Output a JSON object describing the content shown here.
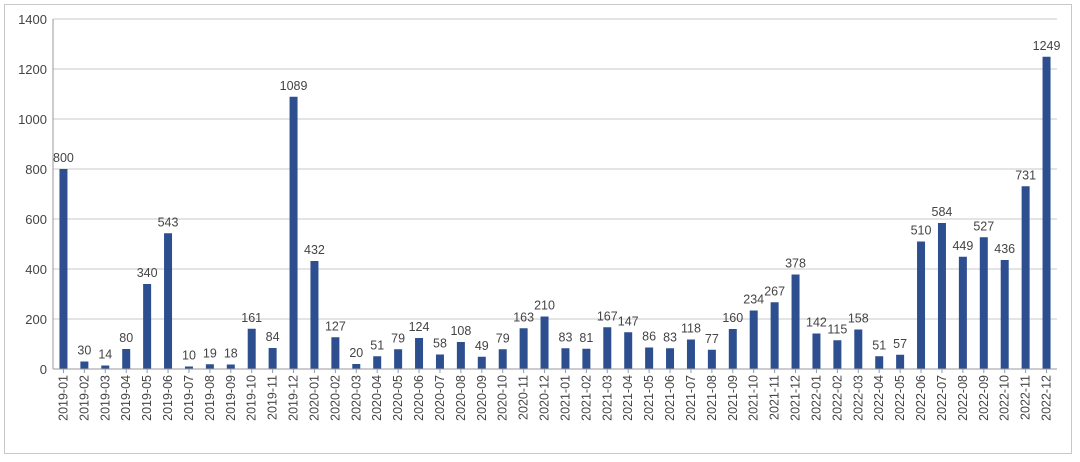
{
  "chart_data": {
    "type": "bar",
    "title": "",
    "xlabel": "",
    "ylabel": "",
    "ylim": [
      0,
      1400
    ],
    "yticks": [
      0,
      200,
      400,
      600,
      800,
      1000,
      1200,
      1400
    ],
    "grid": true,
    "legend": "none",
    "bar_color": "#2e4f8f",
    "categories": [
      "2019-01",
      "2019-02",
      "2019-03",
      "2019-04",
      "2019-05",
      "2019-06",
      "2019-07",
      "2019-08",
      "2019-09",
      "2019-10",
      "2019-11",
      "2019-12",
      "2020-01",
      "2020-02",
      "2020-03",
      "2020-04",
      "2020-05",
      "2020-06",
      "2020-07",
      "2020-08",
      "2020-09",
      "2020-10",
      "2020-11",
      "2020-12",
      "2021-01",
      "2021-02",
      "2021-03",
      "2021-04",
      "2021-05",
      "2021-06",
      "2021-07",
      "2021-08",
      "2021-09",
      "2021-10",
      "2021-11",
      "2021-12",
      "2022-01",
      "2022-02",
      "2022-03",
      "2022-04",
      "2022-05",
      "2022-06",
      "2022-07",
      "2022-08",
      "2022-09",
      "2022-10",
      "2022-11",
      "2022-12"
    ],
    "values": [
      800,
      30,
      14,
      80,
      340,
      543,
      10,
      19,
      18,
      161,
      84,
      1089,
      432,
      127,
      20,
      51,
      79,
      124,
      58,
      108,
      49,
      79,
      163,
      210,
      83,
      81,
      167,
      147,
      86,
      83,
      118,
      77,
      160,
      234,
      267,
      378,
      142,
      115,
      158,
      51,
      57,
      510,
      584,
      449,
      527,
      436,
      731,
      1249
    ]
  }
}
